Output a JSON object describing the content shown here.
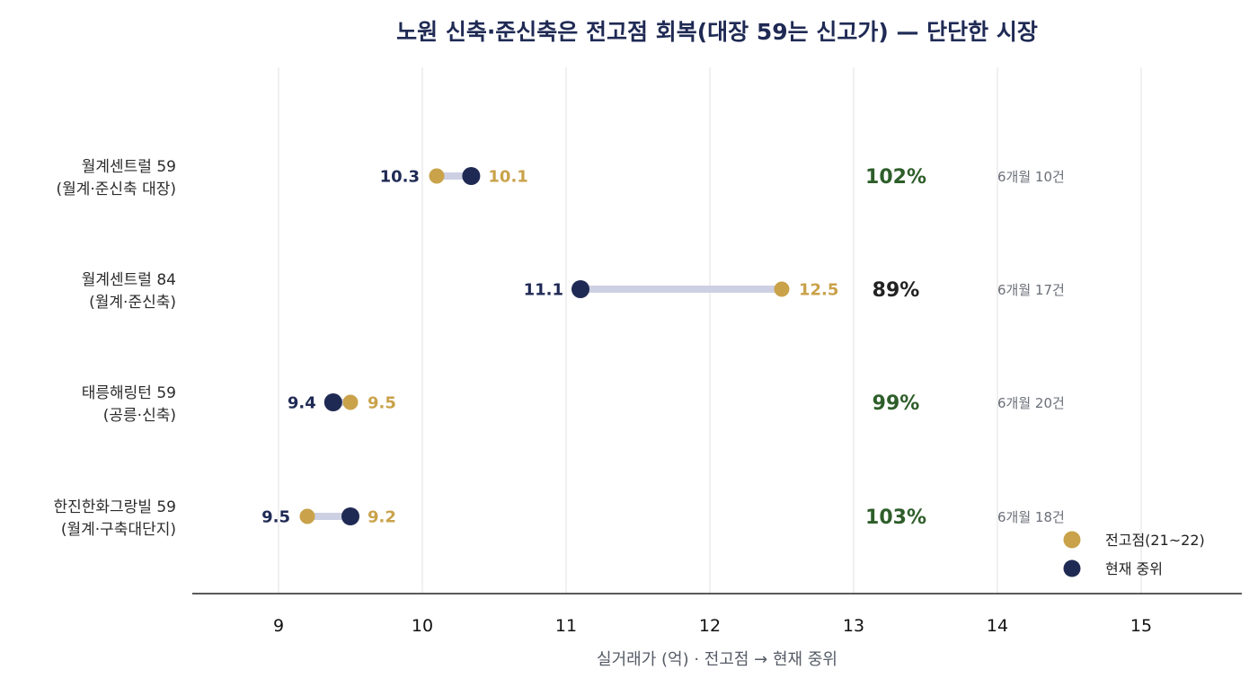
{
  "chart_data": {
    "type": "dumbbell",
    "title": "노원 신축·준신축은 전고점 회복(대장 59는 신고가) — 단단한 시장",
    "xlabel": "실거래가 (억) · 전고점 → 현재 중위",
    "xlim": [
      8.4,
      15.7
    ],
    "xticks": [
      9,
      10,
      11,
      12,
      13,
      14,
      15
    ],
    "xtick_labels": [
      "9",
      "10",
      "11",
      "12",
      "13",
      "14",
      "15"
    ],
    "grid": "vertical",
    "legend_position": "bottom-right",
    "legend": [
      {
        "label": "전고점(21~22)",
        "color": "#c9a24a"
      },
      {
        "label": "현재 중위",
        "color": "#1f2a54"
      }
    ],
    "colors": {
      "peak": "#c9a24a",
      "current": "#1f2a54",
      "connector": "#cdd0e2",
      "recovered": "#2e5e2a",
      "not_recovered": "#222222",
      "grid": "#e6e6e6"
    },
    "categories": [
      {
        "line1": "월계센트럴 59",
        "line2": "(월계·준신축 대장)"
      },
      {
        "line1": "월계센트럴 84",
        "line2": "(월계·준신축)"
      },
      {
        "line1": "태릉해링턴 59",
        "line2": "(공릉·신축)"
      },
      {
        "line1": "한진한화그랑빌 59",
        "line2": "(월계·구축대단지)"
      }
    ],
    "series": [
      {
        "key": "peak",
        "values": [
          10.1,
          12.5,
          9.5,
          9.2
        ]
      },
      {
        "key": "current",
        "values": [
          10.34,
          11.1,
          9.38,
          9.5
        ]
      }
    ],
    "current_labels": [
      "10.3",
      "11.1",
      "9.4",
      "9.5"
    ],
    "peak_labels": [
      "10.1",
      "12.5",
      "9.5",
      "9.2"
    ],
    "ratio_labels": [
      "102%",
      "89%",
      "99%",
      "103%"
    ],
    "recovered": [
      true,
      false,
      true,
      true
    ],
    "count_labels": [
      "6개월 10건",
      "6개월 17건",
      "6개월 20건",
      "6개월 18건"
    ]
  }
}
